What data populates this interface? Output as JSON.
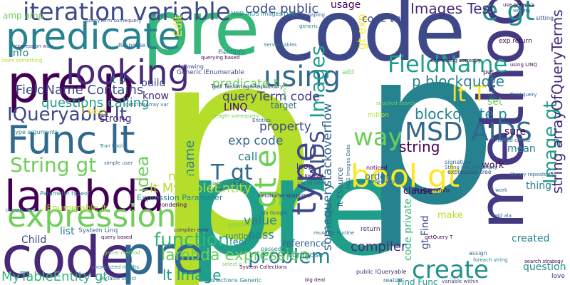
{
  "words": [
    {
      "text": "p",
      "color": "#b5de2b"
    },
    {
      "text": "pre",
      "color": "#1f9e89"
    },
    {
      "text": "code",
      "color": "#3e4989"
    },
    {
      "text": "pre",
      "color": "#35b779"
    },
    {
      "text": "p",
      "color": "#26828e"
    },
    {
      "text": "method",
      "color": "#443983"
    },
    {
      "text": "code",
      "color": "#482878"
    },
    {
      "text": "pre",
      "color": "#31688e"
    },
    {
      "text": "pre p",
      "color": "#440154"
    },
    {
      "text": "predicate",
      "color": "#26828e"
    },
    {
      "text": "Func lt",
      "color": "#31688e"
    },
    {
      "text": "lambda",
      "color": "#440154"
    },
    {
      "text": "expression",
      "color": "#6ece58"
    },
    {
      "text": "looking",
      "color": "#482878"
    },
    {
      "text": "iteration variable",
      "color": "#3e4989"
    },
    {
      "text": "bool gt",
      "color": "#fde725"
    },
    {
      "text": "create",
      "color": "#21918c"
    },
    {
      "text": "type",
      "color": "#3e4989"
    },
    {
      "text": "gt e",
      "color": "#6ece58"
    },
    {
      "text": "using",
      "color": "#31688e"
    },
    {
      "text": "MSD AIDS",
      "color": "#31688e"
    },
    {
      "text": "FieldName",
      "color": "#1f9e89"
    },
    {
      "text": "string gt",
      "color": "#440154"
    },
    {
      "text": "IQueryable lt",
      "color": "#3e4989"
    },
    {
      "text": "String gt",
      "color": "#6ece58"
    },
    {
      "text": "function",
      "color": "#35b779"
    },
    {
      "text": "problem",
      "color": "#26828e"
    },
    {
      "text": "lambda expression",
      "color": "#6ece58"
    },
    {
      "text": "Image gt",
      "color": "#1f9e89"
    },
    {
      "text": "T gt",
      "color": "#31688e"
    },
    {
      "text": "lt T",
      "color": "#fde725"
    },
    {
      "text": "e gt",
      "color": "#21918c"
    },
    {
      "text": "p blockquote",
      "color": "#26828e"
    },
    {
      "text": "blockquote p",
      "color": "#26828e"
    },
    {
      "text": "way",
      "color": "#6ece58"
    },
    {
      "text": "gt exp",
      "color": "#fde725"
    },
    {
      "text": "string arrayOfQueryTerms",
      "color": "#482878"
    },
    {
      "text": "idea",
      "color": "#6ece58"
    },
    {
      "text": "lt MyTableEntity",
      "color": "#b5de2b"
    },
    {
      "text": "MyTableEntity gt",
      "color": "#35b779"
    },
    {
      "text": "lt Image",
      "color": "#1f9e89"
    },
    {
      "text": "Images",
      "color": "#1f9e89"
    },
    {
      "text": "AIDS",
      "color": "#3e4989"
    },
    {
      "text": "Edit",
      "color": "#fde725"
    },
    {
      "text": "Images Test",
      "color": "#482878"
    },
    {
      "text": "code public",
      "color": "#3e4989"
    },
    {
      "text": "FieldName Contains",
      "color": "#3e4989"
    },
    {
      "text": "questions calling",
      "color": "#1f9e89"
    },
    {
      "text": "queryTerm code",
      "color": "#443983"
    },
    {
      "text": "predicate t",
      "color": "#6ece58"
    },
    {
      "text": "somequery",
      "color": "#31688e"
    },
    {
      "text": "exp code",
      "color": "#31688e"
    },
    {
      "text": "stackoverflow",
      "color": "#31688e"
    },
    {
      "text": "name",
      "color": "#26828e"
    },
    {
      "text": "call",
      "color": "#26828e"
    },
    {
      "text": "now",
      "color": "#b5de2b"
    },
    {
      "text": "string",
      "color": "#440154"
    },
    {
      "text": "property",
      "color": "#3e4989"
    },
    {
      "text": "info",
      "color": "#26828e"
    },
    {
      "text": "LINQ",
      "color": "#440154"
    },
    {
      "text": "compiler",
      "color": "#482878"
    },
    {
      "text": "value",
      "color": "#26828e"
    },
    {
      "text": "pass",
      "color": "#26828e"
    },
    {
      "text": "reference",
      "color": "#31688e"
    },
    {
      "text": "Child",
      "color": "#3e4989"
    },
    {
      "text": "list",
      "color": "#26828e"
    },
    {
      "text": "question",
      "color": "#21918c"
    },
    {
      "text": "created",
      "color": "#26828e"
    },
    {
      "text": "mean",
      "color": "#26828e"
    },
    {
      "text": "sure",
      "color": "#440154"
    },
    {
      "text": "thing",
      "color": "#26828e"
    },
    {
      "text": "error",
      "color": "#31688e"
    },
    {
      "text": "Find Func",
      "color": "#21918c"
    },
    {
      "text": "gt Find",
      "color": "#3e4989"
    },
    {
      "text": "code private",
      "color": "#35b779"
    },
    {
      "text": "code var",
      "color": "#3e4989"
    },
    {
      "text": "usage",
      "color": "#440154"
    },
    {
      "text": "IEnumerable lt",
      "color": "#b5de2b"
    },
    {
      "text": "Expression Parameter",
      "color": "#26828e"
    },
    {
      "text": "know",
      "color": "#482878"
    },
    {
      "text": "strong",
      "color": "#482878"
    },
    {
      "text": "T bool",
      "color": "#fde725"
    },
    {
      "text": "build",
      "color": "#3e4989"
    },
    {
      "text": "lt U",
      "color": "#26828e"
    },
    {
      "text": "set",
      "color": "#6ece58"
    },
    {
      "text": "work",
      "color": "#440154"
    },
    {
      "text": "order",
      "color": "#31688e"
    },
    {
      "text": "make",
      "color": "#b5de2b"
    },
    {
      "text": "feel",
      "color": "#26828e"
    },
    {
      "text": "runtime",
      "color": "#26828e"
    },
    {
      "text": "clause",
      "color": "#440154"
    },
    {
      "text": "compose",
      "color": "#26828e"
    },
    {
      "text": "target",
      "color": "#31688e"
    },
    {
      "text": "loop",
      "color": "#482878"
    },
    {
      "text": "amp amp",
      "color": "#6ece58"
    },
    {
      "text": "FieldInfo",
      "color": "#26828e"
    },
    {
      "text": "System Linq",
      "color": "#31688e"
    },
    {
      "text": "MSD AIDS Images Data",
      "color": "#26828e"
    },
    {
      "text": "Test TestImageRepository",
      "color": "#3e4989"
    },
    {
      "text": "Generic IEnumerable",
      "color": "#3e4989"
    },
    {
      "text": "Parameter typeof",
      "color": "#26828e"
    },
    {
      "text": "type arguments",
      "color": "#26828e"
    },
    {
      "text": "querying based",
      "color": "#440154"
    },
    {
      "text": "following",
      "color": "#3e4989"
    },
    {
      "text": "lt TSource",
      "color": "#31688e"
    },
    {
      "text": "AIDS Images Data",
      "color": "#31688e"
    },
    {
      "text": "Collections Generic",
      "color": "#26828e"
    },
    {
      "text": "PropertyInfo",
      "color": "#440154"
    },
    {
      "text": "expression tree",
      "color": "#3e4989"
    },
    {
      "text": "library repeatedly",
      "color": "#31688e"
    },
    {
      "text": "variable within",
      "color": "#3e4989"
    },
    {
      "text": "public IQueryable",
      "color": "#482878"
    },
    {
      "text": "search strategy",
      "color": "#440154"
    },
    {
      "text": "local variable",
      "color": "#26828e"
    },
    {
      "text": "FieldName StartsWith",
      "color": "#482878"
    },
    {
      "text": "compiler error",
      "color": "#482878"
    },
    {
      "text": "supplied search",
      "color": "#6ece58"
    },
    {
      "text": "getter method",
      "color": "#6ece58"
    },
    {
      "text": "put",
      "color": "#440154"
    },
    {
      "text": "add",
      "color": "#6ece58"
    },
    {
      "text": "return",
      "color": "#482878"
    },
    {
      "text": "exp return",
      "color": "#440154"
    },
    {
      "text": "million",
      "color": "#b5de2b"
    },
    {
      "text": "love",
      "color": "#482878"
    },
    {
      "text": "realize",
      "color": "#31688e"
    },
    {
      "text": "sitting",
      "color": "#3e4989"
    },
    {
      "text": "handy",
      "color": "#6ece58"
    },
    {
      "text": "final query",
      "color": "#31688e"
    },
    {
      "text": "wondering",
      "color": "#440154"
    },
    {
      "text": "practice",
      "color": "#6ece58"
    },
    {
      "text": "passed",
      "color": "#26828e"
    },
    {
      "text": "big deal",
      "color": "#440154"
    },
    {
      "text": "simple user",
      "color": "#31688e"
    },
    {
      "text": "deal",
      "color": "#31688e"
    },
    {
      "text": "select q",
      "color": "#6ece58"
    },
    {
      "text": "cause later",
      "color": "#31688e"
    },
    {
      "text": "noticed",
      "color": "#440154"
    },
    {
      "text": "var somequery",
      "color": "#31688e"
    },
    {
      "text": "query based",
      "color": "#440154"
    },
    {
      "text": "Entities",
      "color": "#31688e"
    },
    {
      "text": "tables",
      "color": "#31688e"
    },
    {
      "text": "Server tables",
      "color": "#26828e"
    },
    {
      "text": "writing",
      "color": "#31688e"
    },
    {
      "text": "Image",
      "color": "#3e4989"
    },
    {
      "text": "generic",
      "color": "#26828e"
    },
    {
      "text": "queryTerm somequery",
      "color": "#3e4989"
    },
    {
      "text": "looks something",
      "color": "#b5de2b"
    },
    {
      "text": "expression way",
      "color": "#3e4989"
    },
    {
      "text": "expressing correctly",
      "color": "#440154"
    },
    {
      "text": "using LINQ",
      "color": "#440154"
    },
    {
      "text": "signature",
      "color": "#31688e"
    },
    {
      "text": "String InNullOrEmpty",
      "color": "#31688e"
    },
    {
      "text": "getQuery T",
      "color": "#440154"
    },
    {
      "text": "assign",
      "color": "#31688e"
    },
    {
      "text": "foreach string",
      "color": "#26828e"
    },
    {
      "text": "field ala",
      "color": "#31688e"
    },
    {
      "text": "instead create",
      "color": "#31688e"
    },
    {
      "text": "C work",
      "color": "#31688e"
    },
    {
      "text": "MyTable select",
      "color": "#26828e"
    },
    {
      "text": "Tran bool",
      "color": "#26828e"
    },
    {
      "text": "complicated",
      "color": "#31688e"
    },
    {
      "text": "Length somequery",
      "color": "#6ece58"
    },
    {
      "text": "getsTheArray var",
      "color": "#31688e"
    },
    {
      "text": "ala Google",
      "color": "#31688e"
    },
    {
      "text": "System Collections",
      "color": "#440154"
    },
    {
      "text": "Response",
      "color": "#31688e"
    },
    {
      "text": "use generics",
      "color": "#440154"
    },
    {
      "text": "reusable routine",
      "color": "#31688e"
    },
    {
      "text": "unexpected results",
      "color": "#26828e"
    },
    {
      "text": "br Instead",
      "color": "#440154"
    },
    {
      "text": "haping",
      "color": "#31688e"
    }
  ]
}
